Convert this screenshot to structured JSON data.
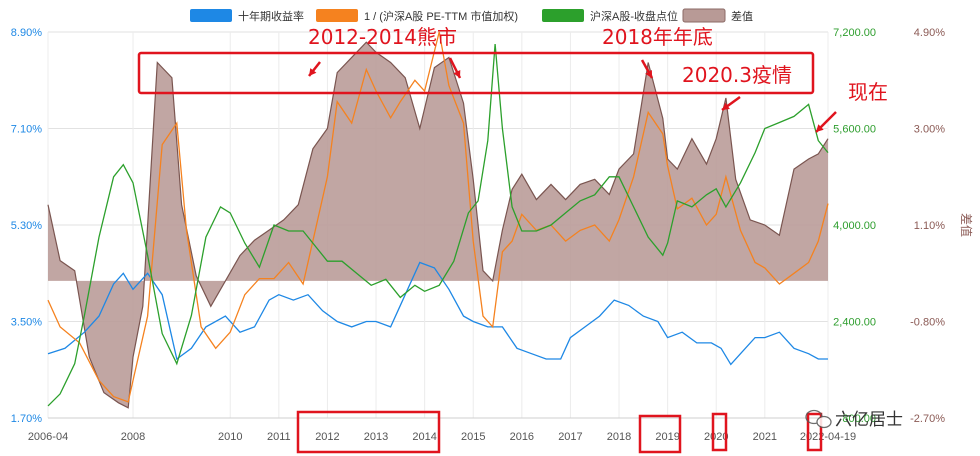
{
  "chart_data": {
    "type": "line",
    "legend": [
      {
        "label": "十年期收益率",
        "color": "#1e88e5",
        "shape": "rect"
      },
      {
        "label": "1 / (沪深A股 PE-TTM 市值加权)",
        "color": "#f5821f",
        "shape": "rect"
      },
      {
        "label": "沪深A股-收盘点位",
        "color": "#2ca02c",
        "shape": "rect"
      },
      {
        "label": "差值",
        "color": "#b89a96",
        "shape": "rect"
      }
    ],
    "x_start": "2006-04",
    "x_end": "2022-04-19",
    "x_tick_labels": [
      "2006-04",
      "2008",
      "2010",
      "2011",
      "2012",
      "2013",
      "2014",
      "2015",
      "2016",
      "2017",
      "2018",
      "2019",
      "2020",
      "2021",
      "2022-04-19"
    ],
    "x_tick_positions": [
      2006.25,
      2008,
      2010,
      2011,
      2012,
      2013,
      2014,
      2015,
      2016,
      2017,
      2018,
      2019,
      2020,
      2021,
      2022.3
    ],
    "left_axis": {
      "ticks": [
        "8.90%",
        "7.10%",
        "5.30%",
        "3.50%",
        "1.70%"
      ],
      "range": [
        1.7,
        8.9
      ]
    },
    "right_axis_index": {
      "ticks": [
        "7,200.00",
        "5,600.00",
        "4,000.00",
        "2,400.00",
        "800.00"
      ],
      "range": [
        800,
        7200
      ]
    },
    "right_axis_diff": {
      "ticks": [
        "4.90%",
        "3.00%",
        "1.10%",
        "-0.80%",
        "-2.70%"
      ],
      "range": [
        -2.7,
        4.9
      ],
      "label": "差值"
    },
    "series": [
      {
        "name": "十年期收益率",
        "axis": "left",
        "x": [
          2006.25,
          2006.6,
          2007.0,
          2007.3,
          2007.6,
          2007.8,
          2008.0,
          2008.3,
          2008.6,
          2008.9,
          2009.2,
          2009.5,
          2009.9,
          2010.2,
          2010.5,
          2010.8,
          2011.0,
          2011.3,
          2011.6,
          2011.9,
          2012.2,
          2012.5,
          2012.8,
          2013.0,
          2013.3,
          2013.6,
          2013.9,
          2014.2,
          2014.5,
          2014.8,
          2015.0,
          2015.3,
          2015.6,
          2015.9,
          2016.2,
          2016.5,
          2016.8,
          2017.0,
          2017.3,
          2017.6,
          2017.9,
          2018.2,
          2018.5,
          2018.8,
          2019.0,
          2019.3,
          2019.6,
          2019.9,
          2020.1,
          2020.3,
          2020.5,
          2020.8,
          2021.0,
          2021.3,
          2021.6,
          2021.9,
          2022.1,
          2022.3
        ],
        "y": [
          2.9,
          3.0,
          3.3,
          3.6,
          4.2,
          4.4,
          4.1,
          4.4,
          4.0,
          2.8,
          3.0,
          3.4,
          3.6,
          3.3,
          3.4,
          3.9,
          4.0,
          3.9,
          4.0,
          3.7,
          3.5,
          3.4,
          3.5,
          3.5,
          3.4,
          4.0,
          4.6,
          4.5,
          4.1,
          3.6,
          3.5,
          3.4,
          3.4,
          3.0,
          2.9,
          2.8,
          2.8,
          3.2,
          3.4,
          3.6,
          3.9,
          3.8,
          3.6,
          3.5,
          3.2,
          3.3,
          3.1,
          3.1,
          3.0,
          2.7,
          2.9,
          3.2,
          3.2,
          3.3,
          3.0,
          2.9,
          2.8,
          2.8
        ]
      },
      {
        "name": "1 / (沪深A股 PE-TTM 市值加权)",
        "axis": "left",
        "x": [
          2006.25,
          2006.5,
          2006.9,
          2007.3,
          2007.6,
          2007.9,
          2008.0,
          2008.3,
          2008.6,
          2008.9,
          2009.1,
          2009.4,
          2009.7,
          2010.0,
          2010.3,
          2010.6,
          2010.9,
          2011.2,
          2011.5,
          2011.8,
          2012.0,
          2012.2,
          2012.5,
          2012.8,
          2013.0,
          2013.3,
          2013.5,
          2013.8,
          2014.0,
          2014.3,
          2014.5,
          2014.8,
          2015.0,
          2015.2,
          2015.4,
          2015.6,
          2015.8,
          2016.0,
          2016.3,
          2016.6,
          2016.9,
          2017.2,
          2017.5,
          2017.8,
          2018.0,
          2018.3,
          2018.6,
          2018.9,
          2019.0,
          2019.2,
          2019.5,
          2019.8,
          2020.0,
          2020.2,
          2020.5,
          2020.8,
          2021.0,
          2021.3,
          2021.6,
          2021.9,
          2022.1,
          2022.3
        ],
        "y": [
          3.9,
          3.4,
          3.1,
          2.4,
          2.1,
          2.0,
          2.4,
          3.6,
          6.8,
          7.2,
          5.2,
          3.4,
          3.0,
          3.3,
          4.0,
          4.3,
          4.3,
          4.6,
          4.2,
          5.4,
          6.2,
          7.6,
          7.2,
          8.2,
          7.8,
          7.3,
          7.6,
          8.0,
          7.8,
          8.9,
          7.9,
          7.2,
          5.0,
          3.6,
          3.4,
          4.8,
          5.0,
          5.5,
          5.2,
          5.3,
          5.0,
          5.2,
          5.3,
          5.0,
          5.4,
          6.2,
          7.4,
          7.0,
          6.4,
          5.6,
          5.8,
          5.3,
          5.5,
          6.2,
          5.2,
          4.6,
          4.5,
          4.2,
          4.4,
          4.6,
          5.0,
          5.7
        ]
      },
      {
        "name": "沪深A股-收盘点位",
        "axis": "right_index",
        "x": [
          2006.25,
          2006.5,
          2006.8,
          2007.0,
          2007.3,
          2007.6,
          2007.8,
          2008.0,
          2008.3,
          2008.6,
          2008.9,
          2009.2,
          2009.5,
          2009.8,
          2010.0,
          2010.3,
          2010.6,
          2010.9,
          2011.2,
          2011.5,
          2011.8,
          2012.0,
          2012.3,
          2012.6,
          2012.9,
          2013.2,
          2013.5,
          2013.8,
          2014.0,
          2014.3,
          2014.6,
          2014.9,
          2015.1,
          2015.3,
          2015.45,
          2015.6,
          2015.8,
          2016.0,
          2016.3,
          2016.6,
          2016.9,
          2017.2,
          2017.5,
          2017.8,
          2018.0,
          2018.3,
          2018.6,
          2018.9,
          2019.0,
          2019.2,
          2019.5,
          2019.8,
          2020.0,
          2020.2,
          2020.5,
          2020.8,
          2021.0,
          2021.3,
          2021.6,
          2021.9,
          2022.1,
          2022.3
        ],
        "y": [
          1000,
          1200,
          1700,
          2500,
          3800,
          4800,
          5000,
          4700,
          3500,
          2200,
          1700,
          2500,
          3800,
          4300,
          4200,
          3700,
          3300,
          4000,
          3900,
          3900,
          3600,
          3400,
          3400,
          3200,
          3000,
          3100,
          2800,
          3000,
          2900,
          3000,
          3400,
          4200,
          4400,
          5400,
          7000,
          5600,
          4300,
          3900,
          3900,
          4000,
          4200,
          4400,
          4500,
          4800,
          4800,
          4300,
          3800,
          3500,
          3700,
          4400,
          4300,
          4500,
          4600,
          4300,
          4700,
          5200,
          5600,
          5700,
          5800,
          6000,
          5400,
          5200
        ]
      },
      {
        "name": "差值",
        "axis": "right_diff",
        "x": [
          2006.25,
          2006.5,
          2006.8,
          2007.1,
          2007.4,
          2007.7,
          2007.9,
          2008.0,
          2008.2,
          2008.5,
          2008.8,
          2009.0,
          2009.3,
          2009.6,
          2009.9,
          2010.2,
          2010.5,
          2010.8,
          2011.1,
          2011.4,
          2011.7,
          2012.0,
          2012.2,
          2012.5,
          2012.8,
          2013.0,
          2013.3,
          2013.6,
          2013.9,
          2014.2,
          2014.5,
          2014.8,
          2015.0,
          2015.2,
          2015.4,
          2015.6,
          2015.8,
          2016.0,
          2016.3,
          2016.6,
          2016.9,
          2017.2,
          2017.5,
          2017.8,
          2018.0,
          2018.3,
          2018.6,
          2018.9,
          2019.0,
          2019.2,
          2019.5,
          2019.8,
          2020.0,
          2020.2,
          2020.4,
          2020.7,
          2021.0,
          2021.3,
          2021.6,
          2021.9,
          2022.1,
          2022.3
        ],
        "y": [
          1.5,
          0.4,
          0.2,
          -1.5,
          -2.2,
          -2.4,
          -2.5,
          -1.5,
          -0.5,
          4.3,
          4.0,
          1.5,
          0.1,
          -0.5,
          0.0,
          0.5,
          0.8,
          1.0,
          1.2,
          1.5,
          2.6,
          3.0,
          4.1,
          4.4,
          4.7,
          4.5,
          4.3,
          4.0,
          3.0,
          4.2,
          4.4,
          3.5,
          2.0,
          0.2,
          0.0,
          1.0,
          1.8,
          2.1,
          1.6,
          1.9,
          1.6,
          1.9,
          2.0,
          1.7,
          2.2,
          2.5,
          4.3,
          3.2,
          2.4,
          2.2,
          2.8,
          2.3,
          2.8,
          3.6,
          2.0,
          1.2,
          1.1,
          0.9,
          2.2,
          2.4,
          2.5,
          2.8
        ]
      }
    ],
    "annotations": [
      {
        "text": "2012-2014熊市"
      },
      {
        "text": "2018年年底"
      },
      {
        "text": "2020.3疫情"
      },
      {
        "text": "现在"
      }
    ],
    "highlight_boxes": [
      "2012-2014",
      "2019",
      "2020",
      "2022-04-19"
    ]
  },
  "watermark": "六亿居士"
}
